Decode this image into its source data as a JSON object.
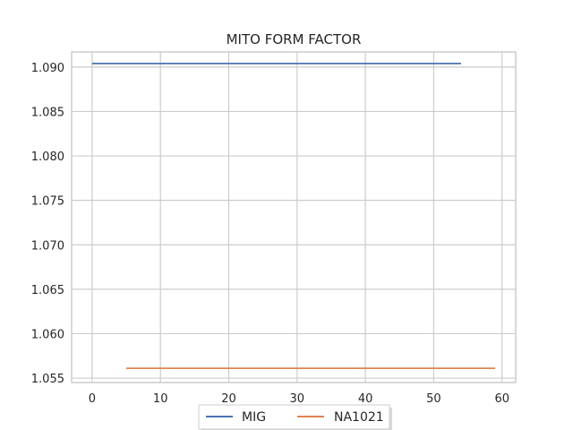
{
  "chart_data": {
    "type": "line",
    "title": "MITO FORM FACTOR",
    "xlabel": "",
    "ylabel": "",
    "xlim": [
      -3,
      62
    ],
    "ylim": [
      1.0545,
      1.0917
    ],
    "xticks": [
      0,
      10,
      20,
      30,
      40,
      50,
      60
    ],
    "yticks": [
      1.055,
      1.06,
      1.065,
      1.07,
      1.075,
      1.08,
      1.085,
      1.09
    ],
    "ytick_labels": [
      "1.055",
      "1.060",
      "1.065",
      "1.070",
      "1.075",
      "1.080",
      "1.085",
      "1.090"
    ],
    "grid": true,
    "legend_placement": "bottom-center",
    "series": [
      {
        "name": "MIG",
        "color": "#4c72b0",
        "x": [
          0,
          54
        ],
        "y": [
          1.0904,
          1.0904
        ]
      },
      {
        "name": "NA1021",
        "color": "#dd8452",
        "x": [
          5,
          59
        ],
        "y": [
          1.0561,
          1.0561
        ]
      }
    ]
  }
}
